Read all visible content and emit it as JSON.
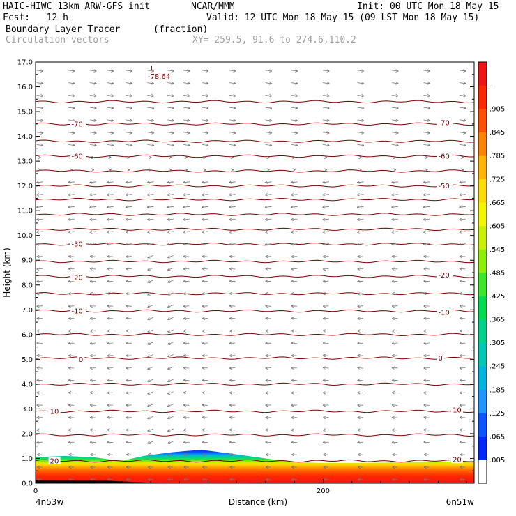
{
  "header": {
    "line1_left": "HAIC-HIWC 13km ARW-GFS init",
    "line1_center": "NCAR/MMM",
    "line1_right": "Init: 00 UTC Mon 18 May 15",
    "line2_left": "Fcst:   12 h",
    "line2_right": "Valid: 12 UTC Mon 18 May 15 (09 LST Mon 18 May 15)",
    "line3_field": "Boundary Layer Tracer",
    "line3_unit": "(fraction)",
    "line4_field": "Circulation vectors",
    "line4_xy": "XY= 259.5, 91.6 to 274.6,110.2"
  },
  "chart_data": {
    "type": "heatmap",
    "xlabel": "Distance (km)",
    "ylabel": "Height (km)",
    "xlim": [
      0,
      305
    ],
    "ylim": [
      0.0,
      17.0
    ],
    "x_ticks": [
      {
        "value": 0,
        "label": "0"
      },
      {
        "value": 200,
        "label": "200"
      }
    ],
    "y_ticks": [
      "0.0",
      "1.0",
      "2.0",
      "3.0",
      "4.0",
      "5.0",
      "6.0",
      "7.0",
      "8.0",
      "9.0",
      "10.0",
      "11.0",
      "12.0",
      "13.0",
      "14.0",
      "15.0",
      "16.0",
      "17.0"
    ],
    "endpoint_left": "4n53w",
    "endpoint_right": "6n51w",
    "colorbar": {
      "labels": [
        ".005",
        ".065",
        ".125",
        ".185",
        ".245",
        ".305",
        ".365",
        ".425",
        ".485",
        ".545",
        ".605",
        ".665",
        ".725",
        ".785",
        ".845",
        ".905",
        "–"
      ],
      "colors": [
        "#ffffff",
        "#0028ff",
        "#0a55ff",
        "#2096ff",
        "#00b4e0",
        "#00c8b4",
        "#00d28c",
        "#00dc50",
        "#3ce628",
        "#8cf000",
        "#c8f000",
        "#f5f500",
        "#ffdc00",
        "#ffb400",
        "#ff8200",
        "#ff5000",
        "#ff2800",
        "#f01414"
      ]
    },
    "tracer_top_km": [
      {
        "x": 0,
        "top": 1.05
      },
      {
        "x": 20,
        "top": 1.1
      },
      {
        "x": 40,
        "top": 1.05
      },
      {
        "x": 60,
        "top": 0.9
      },
      {
        "x": 75,
        "top": 1.1
      },
      {
        "x": 95,
        "top": 1.25
      },
      {
        "x": 115,
        "top": 1.35
      },
      {
        "x": 135,
        "top": 1.2
      },
      {
        "x": 160,
        "top": 1.0
      },
      {
        "x": 180,
        "top": 0.85
      },
      {
        "x": 200,
        "top": 0.82
      },
      {
        "x": 230,
        "top": 0.82
      },
      {
        "x": 260,
        "top": 0.85
      },
      {
        "x": 290,
        "top": 0.88
      },
      {
        "x": 305,
        "top": 0.9
      }
    ],
    "terrain_km": [
      {
        "x": 0,
        "h": 0.12
      },
      {
        "x": 50,
        "h": 0.1
      },
      {
        "x": 80,
        "h": 0.02
      },
      {
        "x": 110,
        "h": 0.0
      },
      {
        "x": 160,
        "h": 0.02
      },
      {
        "x": 200,
        "h": 0.02
      },
      {
        "x": 305,
        "h": 0.02
      }
    ],
    "temperature_contours": [
      {
        "label": "20",
        "height_km": 0.9
      },
      {
        "label": "10",
        "height_km": 2.9
      },
      {
        "label": "0",
        "height_km": 5.05
      },
      {
        "label": "-10",
        "height_km": 6.95
      },
      {
        "label": "-20",
        "height_km": 8.35
      },
      {
        "label": "-30",
        "height_km": 9.65
      },
      {
        "label": "-50",
        "height_km": 12.0
      },
      {
        "label": "-60",
        "height_km": 13.2
      },
      {
        "label": "-70",
        "height_km": 14.5
      }
    ],
    "other_contour_heights_km": [
      1.95,
      4.0,
      6.0,
      7.65,
      8.95,
      10.25,
      10.85,
      11.45,
      12.6,
      13.8,
      15.4
    ],
    "contour_labels": [
      {
        "text": "20",
        "x": 10,
        "y": 0.9
      },
      {
        "text": "20",
        "x": 290,
        "y": 0.95
      },
      {
        "text": "10",
        "x": 10,
        "y": 2.9
      },
      {
        "text": "10",
        "x": 290,
        "y": 2.95
      },
      {
        "text": "0",
        "x": 30,
        "y": 5.0
      },
      {
        "text": "0",
        "x": 280,
        "y": 5.05
      },
      {
        "text": "-10",
        "x": 25,
        "y": 6.95
      },
      {
        "text": "-10",
        "x": 280,
        "y": 6.9
      },
      {
        "text": "-20",
        "x": 25,
        "y": 8.3
      },
      {
        "text": "-20",
        "x": 280,
        "y": 8.4
      },
      {
        "text": "-30",
        "x": 25,
        "y": 9.65
      },
      {
        "text": "-50",
        "x": 280,
        "y": 12.0
      },
      {
        "text": "-60",
        "x": 25,
        "y": 13.2
      },
      {
        "text": "-60",
        "x": 280,
        "y": 13.2
      },
      {
        "text": "-70",
        "x": 25,
        "y": 14.5
      },
      {
        "text": "-70",
        "x": 280,
        "y": 14.55
      }
    ],
    "min_marker": {
      "symbol": "L",
      "value": "-78.64",
      "x": 78,
      "y": 16.6
    },
    "vectors": {
      "x_columns": [
        1,
        23,
        38,
        50,
        63,
        78,
        92,
        103,
        116,
        135,
        160,
        178,
        200,
        224,
        248,
        270,
        295
      ],
      "level_spacing_km": 0.5
    }
  }
}
